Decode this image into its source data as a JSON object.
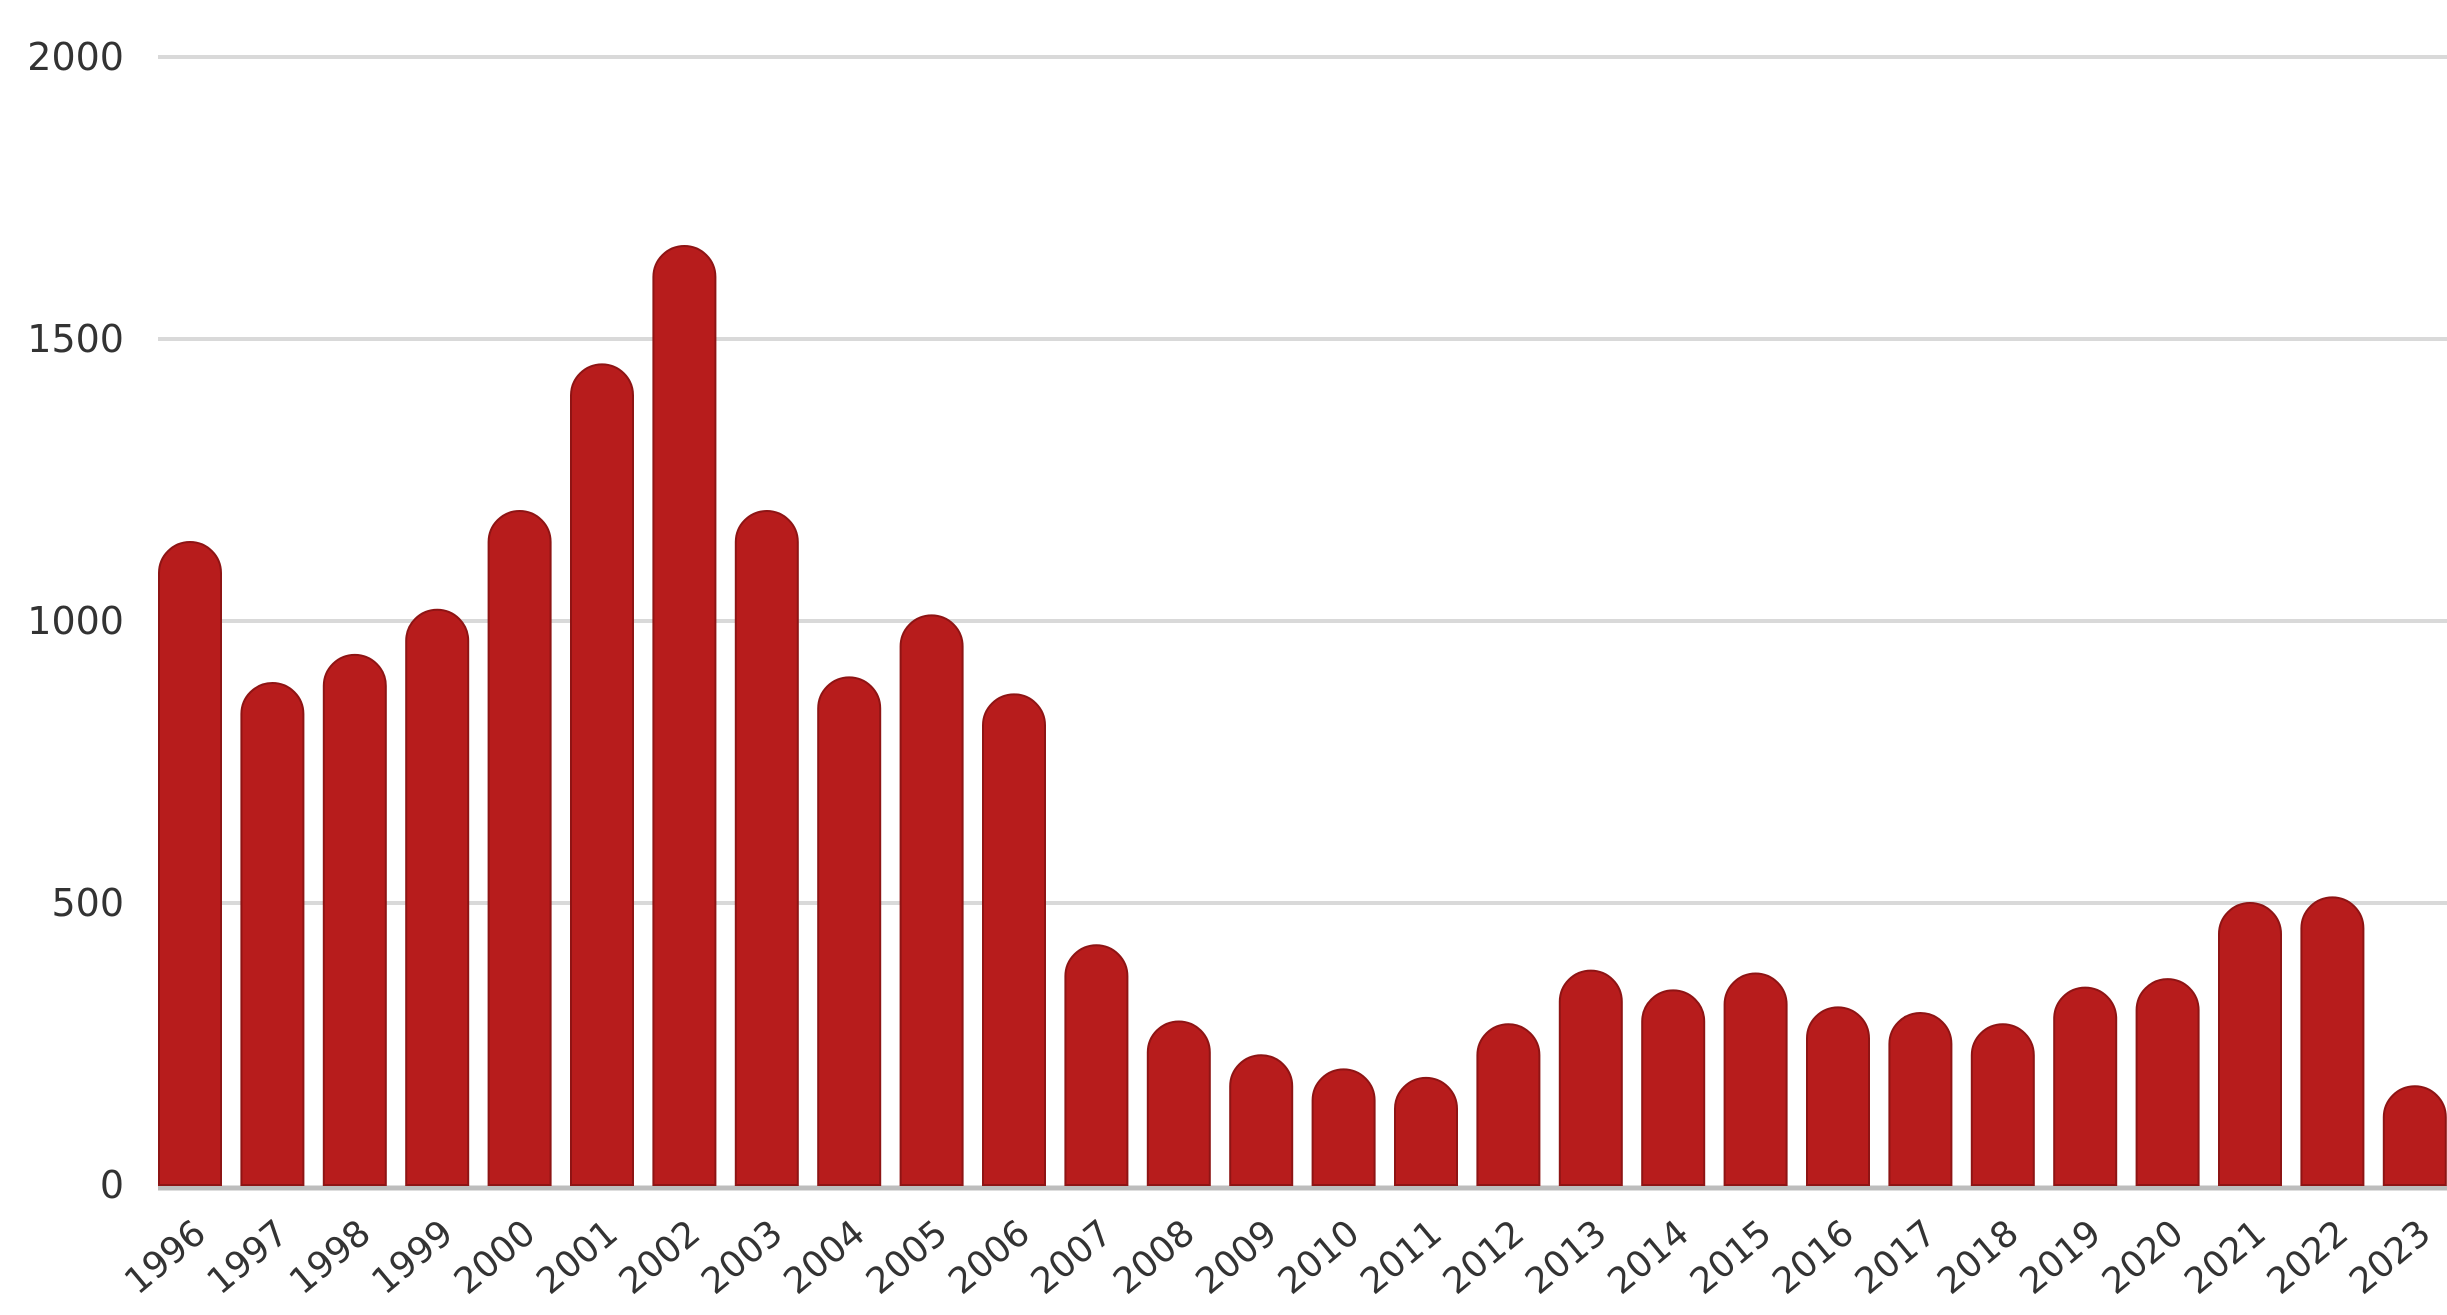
{
  "chart_data": {
    "type": "bar",
    "categories": [
      "1996",
      "1997",
      "1998",
      "1999",
      "2000",
      "2001",
      "2002",
      "2003",
      "2004",
      "2005",
      "2006",
      "2007",
      "2008",
      "2009",
      "2010",
      "2011",
      "2012",
      "2013",
      "2014",
      "2015",
      "2016",
      "2017",
      "2018",
      "2019",
      "2020",
      "2021",
      "2022",
      "2023"
    ],
    "values": [
      1140,
      890,
      940,
      1020,
      1195,
      1455,
      1665,
      1195,
      900,
      1010,
      870,
      425,
      290,
      230,
      205,
      190,
      285,
      380,
      345,
      375,
      315,
      305,
      285,
      350,
      365,
      500,
      510,
      175
    ],
    "ylim": [
      0,
      2000
    ],
    "yticks": [
      0,
      500,
      1000,
      1500,
      2000
    ],
    "grid": true,
    "bar_color": "#b71c1c",
    "grid_color": "#d9d9d9",
    "axis_color": "#bdbdbd"
  }
}
